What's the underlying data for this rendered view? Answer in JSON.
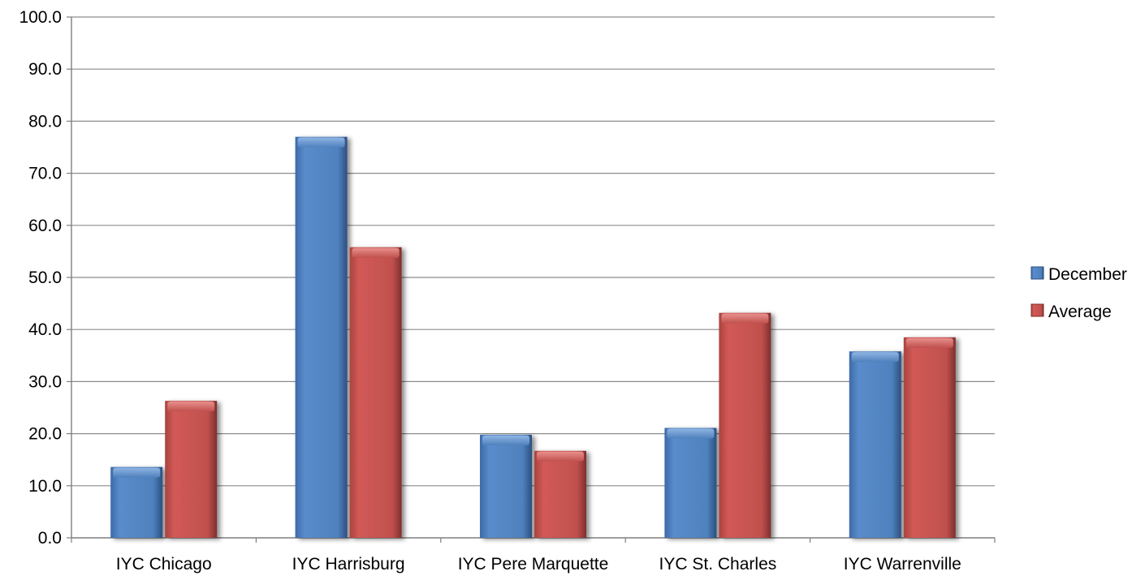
{
  "chart_data": {
    "type": "bar",
    "categories": [
      "IYC Chicago",
      "IYC Harrisburg",
      "IYC Pere Marquette",
      "IYC St. Charles",
      "IYC Warrenville"
    ],
    "series": [
      {
        "name": "December",
        "values": [
          13.6,
          77.0,
          19.8,
          21.1,
          35.8
        ],
        "color": "#4F81BD"
      },
      {
        "name": "Average",
        "values": [
          26.3,
          55.8,
          16.7,
          43.2,
          38.5
        ],
        "color": "#C0504D"
      }
    ],
    "ylim": [
      0,
      100
    ],
    "yticks": [
      "0.0",
      "10.0",
      "20.0",
      "30.0",
      "40.0",
      "50.0",
      "60.0",
      "70.0",
      "80.0",
      "90.0",
      "100.0"
    ],
    "grid": true,
    "legend_position": "right"
  }
}
